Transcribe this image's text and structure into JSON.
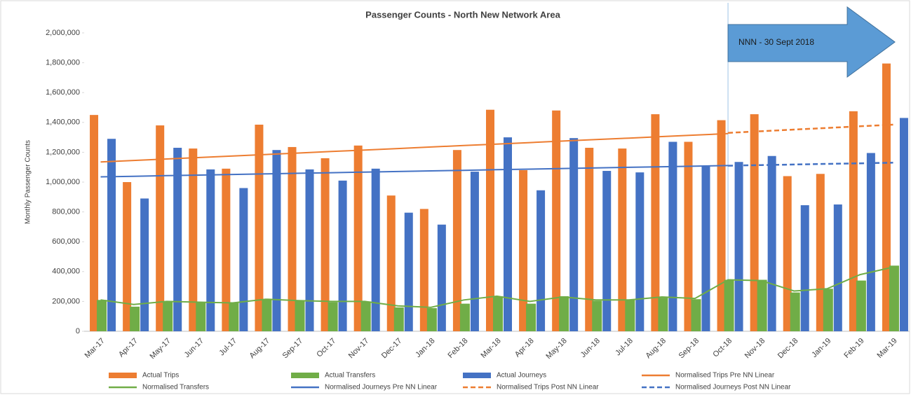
{
  "chart_data": {
    "type": "bar",
    "title": "Passenger Counts - North New Network Area",
    "y_label": "Monthly Passenger Counts",
    "annotation": "NNN - 30 Sept 2018",
    "categories": [
      "Mar-17",
      "Apr-17",
      "May-17",
      "Jun-17",
      "Jul-17",
      "Aug-17",
      "Sep-17",
      "Oct-17",
      "Nov-17",
      "Dec-17",
      "Jan-18",
      "Feb-18",
      "Mar-18",
      "Apr-18",
      "May-18",
      "Jun-18",
      "Jul-18",
      "Aug-18",
      "Sep-18",
      "Oct-18",
      "Nov-18",
      "Dec-18",
      "Jan-19",
      "Feb-19",
      "Mar-19"
    ],
    "ylim": [
      0,
      2000000
    ],
    "yticks": [
      0,
      {
        "value": 200000,
        "label": "200,000"
      },
      {
        "value": 400000,
        "label": "400,000"
      },
      {
        "value": 600000,
        "label": "600,000"
      },
      {
        "value": 800000,
        "label": "800,000"
      },
      {
        "value": 1000000,
        "label": "1,000,000"
      },
      {
        "value": 1200000,
        "label": "1,200,000"
      },
      {
        "value": 1400000,
        "label": "1,400,000"
      },
      {
        "value": 1600000,
        "label": "1,600,000"
      },
      {
        "value": 1800000,
        "label": "1,800,000"
      },
      {
        "value": 2000000,
        "label": "2,000,000"
      }
    ],
    "series": [
      {
        "name": "Actual Trips",
        "kind": "bar",
        "color": "#ed7d31",
        "values": [
          1450000,
          1000000,
          1380000,
          1225000,
          1090000,
          1385000,
          1235000,
          1160000,
          1245000,
          910000,
          820000,
          1215000,
          1485000,
          1080000,
          1480000,
          1230000,
          1225000,
          1455000,
          1270000,
          1415000,
          1455000,
          1040000,
          1055000,
          1475000,
          1795000
        ]
      },
      {
        "name": "Actual Transfers",
        "kind": "bar",
        "color": "#70ad47",
        "values": [
          210000,
          165000,
          200000,
          195000,
          190000,
          215000,
          205000,
          195000,
          200000,
          160000,
          155000,
          185000,
          235000,
          185000,
          235000,
          205000,
          210000,
          225000,
          215000,
          345000,
          345000,
          260000,
          285000,
          340000,
          440000
        ]
      },
      {
        "name": "Actual Journeys",
        "kind": "bar",
        "color": "#4472c4",
        "values": [
          1290000,
          890000,
          1230000,
          1085000,
          960000,
          1215000,
          1085000,
          1010000,
          1090000,
          795000,
          715000,
          1070000,
          1300000,
          945000,
          1295000,
          1075000,
          1065000,
          1270000,
          1105000,
          1135000,
          1175000,
          845000,
          850000,
          1195000,
          1430000
        ]
      },
      {
        "name": "Normalised Trips Pre NN Linear",
        "kind": "line",
        "color": "#ed7d31",
        "values": [
          1135000,
          1145000,
          1155000,
          1165000,
          1175000,
          1185000,
          1195000,
          1205000,
          1215000,
          1225000,
          1235000,
          1245000,
          1255000,
          1265000,
          1275000,
          1285000,
          1295000,
          1305000,
          1315000,
          1325000,
          null,
          null,
          null,
          null,
          null
        ]
      },
      {
        "name": "Normalised Transfers",
        "kind": "line",
        "color": "#70ad47",
        "values": [
          210000,
          180000,
          200000,
          195000,
          190000,
          215000,
          205000,
          200000,
          200000,
          170000,
          160000,
          210000,
          235000,
          200000,
          230000,
          210000,
          210000,
          230000,
          220000,
          345000,
          340000,
          270000,
          285000,
          380000,
          430000
        ]
      },
      {
        "name": "Normalised Journeys Pre NN Linear",
        "kind": "line",
        "color": "#4472c4",
        "values": [
          1035000,
          1039000,
          1043000,
          1047000,
          1051000,
          1055000,
          1059000,
          1063000,
          1067000,
          1071000,
          1075000,
          1079000,
          1083000,
          1087000,
          1091000,
          1095000,
          1099000,
          1103000,
          1107000,
          1111000,
          null,
          null,
          null,
          null,
          null
        ]
      },
      {
        "name": "Normalised Trips Post NN Linear",
        "kind": "line",
        "dashed": true,
        "color": "#ed7d31",
        "values": [
          null,
          null,
          null,
          null,
          null,
          null,
          null,
          null,
          null,
          null,
          null,
          null,
          null,
          null,
          null,
          null,
          null,
          null,
          null,
          1330000,
          1341000,
          1352000,
          1363000,
          1374000,
          1385000
        ]
      },
      {
        "name": "Normalised Journeys Post NN Linear",
        "kind": "line",
        "dashed": true,
        "color": "#4472c4",
        "values": [
          null,
          null,
          null,
          null,
          null,
          null,
          null,
          null,
          null,
          null,
          null,
          null,
          null,
          null,
          null,
          null,
          null,
          null,
          null,
          1110000,
          1114000,
          1118000,
          1122000,
          1126000,
          1130000
        ]
      }
    ]
  }
}
